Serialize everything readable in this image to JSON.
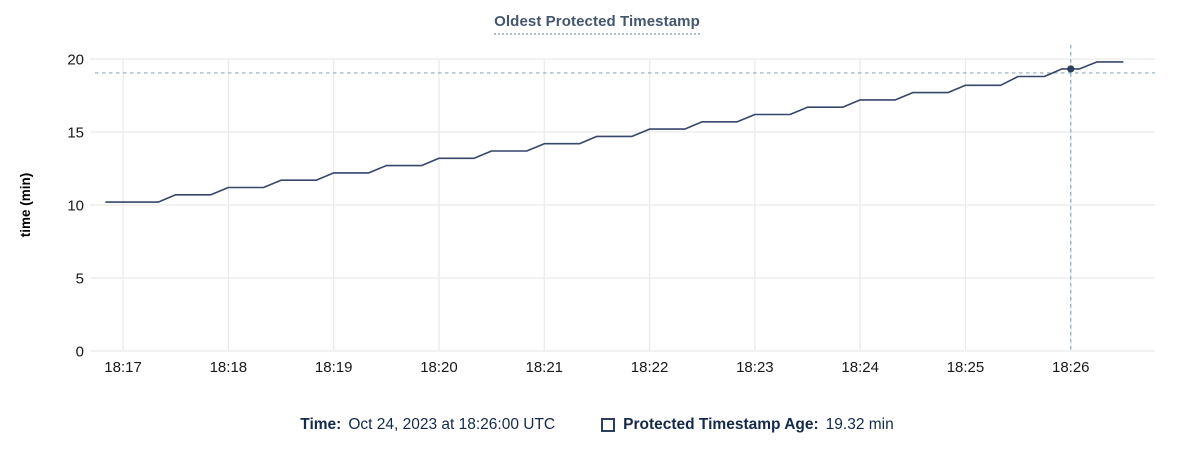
{
  "chart_data": {
    "type": "line",
    "title": "Oldest Protected Timestamp",
    "ylabel": "time (min)",
    "xlabel": "",
    "ylim": [
      0,
      20
    ],
    "yticks": [
      0,
      5,
      10,
      15,
      20
    ],
    "xtick_labels": [
      "18:17",
      "18:18",
      "18:19",
      "18:20",
      "18:21",
      "18:22",
      "18:23",
      "18:24",
      "18:25",
      "18:26"
    ],
    "x_axis_start": "18:16:44",
    "x_axis_end": "18:26:48",
    "grid": true,
    "legend_position": "bottom",
    "series": [
      {
        "name": "Protected Timestamp Age",
        "points": [
          [
            "18:16:50",
            10.2
          ],
          [
            "18:17:20",
            10.2
          ],
          [
            "18:17:30",
            10.7
          ],
          [
            "18:17:50",
            10.7
          ],
          [
            "18:18:00",
            11.2
          ],
          [
            "18:18:20",
            11.2
          ],
          [
            "18:18:30",
            11.7
          ],
          [
            "18:18:50",
            11.7
          ],
          [
            "18:19:00",
            12.2
          ],
          [
            "18:19:20",
            12.2
          ],
          [
            "18:19:30",
            12.7
          ],
          [
            "18:19:50",
            12.7
          ],
          [
            "18:20:00",
            13.2
          ],
          [
            "18:20:20",
            13.2
          ],
          [
            "18:20:30",
            13.7
          ],
          [
            "18:20:50",
            13.7
          ],
          [
            "18:21:00",
            14.2
          ],
          [
            "18:21:20",
            14.2
          ],
          [
            "18:21:30",
            14.7
          ],
          [
            "18:21:50",
            14.7
          ],
          [
            "18:22:00",
            15.2
          ],
          [
            "18:22:20",
            15.2
          ],
          [
            "18:22:30",
            15.7
          ],
          [
            "18:22:50",
            15.7
          ],
          [
            "18:23:00",
            16.2
          ],
          [
            "18:23:20",
            16.2
          ],
          [
            "18:23:30",
            16.7
          ],
          [
            "18:23:50",
            16.7
          ],
          [
            "18:24:00",
            17.2
          ],
          [
            "18:24:20",
            17.2
          ],
          [
            "18:24:30",
            17.7
          ],
          [
            "18:24:50",
            17.7
          ],
          [
            "18:25:00",
            18.2
          ],
          [
            "18:25:20",
            18.2
          ],
          [
            "18:25:30",
            18.8
          ],
          [
            "18:25:45",
            18.8
          ],
          [
            "18:25:55",
            19.32
          ],
          [
            "18:26:05",
            19.32
          ],
          [
            "18:26:15",
            19.8
          ],
          [
            "18:26:30",
            19.8
          ]
        ]
      }
    ],
    "highlight_point": {
      "time": "18:26:00",
      "value": 19.32
    }
  },
  "footer": {
    "time_label": "Time:",
    "time_value": "Oct 24, 2023 at 18:26:00 UTC",
    "legend_label": "Protected Timestamp Age:",
    "legend_value": "19.32 min"
  },
  "colors": {
    "series_line": "#36476a",
    "highlight_dot": "#2c3e5e",
    "crosshair": "#8fabbb",
    "gridline": "#ebebeb",
    "tick_text": "#17181a",
    "axis_label_text": "#000000",
    "title_text": "#44566e"
  }
}
